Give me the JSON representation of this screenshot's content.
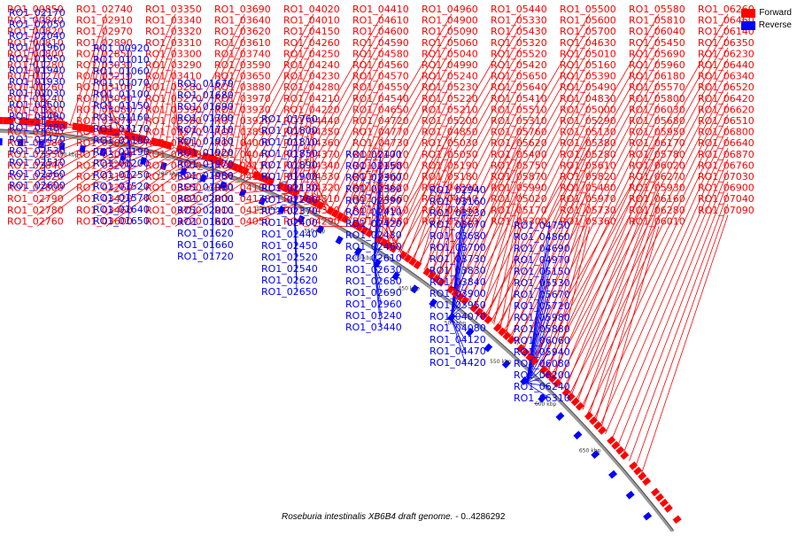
{
  "legend": {
    "forward_label": "Forward",
    "reverse_label": "Reverse",
    "forward_color": "#ff0000",
    "reverse_color": "#0000ff"
  },
  "caption": {
    "organism": "Roseburia intestinalis XB6B4 draft genome.",
    "range": "- 0..4286292"
  },
  "genome_length": 4286292,
  "tick_labels": [
    "100 kbp",
    "150 kbp",
    "200 kbp",
    "250 kbp",
    "300 kbp",
    "350 kbp",
    "400 kbp",
    "450 kbp",
    "500 kbp",
    "550 kbp",
    "600 kbp",
    "650 kbp"
  ],
  "forward_labels": [
    "RO1_00850",
    "RO1_00840",
    "RO1_00820",
    "RO1_00810",
    "RO1_00800",
    "RO1_01280",
    "RO1_01270",
    "RO1_01260",
    "RO1_01240",
    "RO1_01230",
    "RO1_01220",
    "RO1_01600",
    "RO1_02580",
    "RO1_02550",
    "RO1_02840",
    "RO1_02820",
    "RO1_02800",
    "RO1_02790",
    "RO1_02780",
    "RO1_02760",
    "RO1_02740",
    "RO1_02910",
    "RO1_02970",
    "RO1_02890",
    "RO1_02850",
    "RO1_03030",
    "RO1_03210",
    "RO1_03100",
    "RO1_03090",
    "RO1_03080",
    "RO1_03070",
    "RO1_03060",
    "RO1_03050",
    "RO1_03040",
    "RO1_03200",
    "RO1_03190",
    "RO1_03260",
    "RO1_03420",
    "RO1_03460",
    "RO1_03600",
    "RO1_03350",
    "RO1_03340",
    "RO1_03320",
    "RO1_03310",
    "RO1_03300",
    "RO1_03290",
    "RO1_03410",
    "RO1_03280",
    "RO1_03270",
    "RO1_03390",
    "RO1_03580",
    "RO1_03570",
    "RO1_03710",
    "RO1_03810",
    "RO1_03800",
    "RO1_03940",
    "RO1_03550",
    "RO1_03820",
    "RO1_03750",
    "RO1_03720",
    "RO1_03690",
    "RO1_03640",
    "RO1_03620",
    "RO1_03610",
    "RO1_03740",
    "RO1_03590",
    "RO1_03650",
    "RO1_03880",
    "RO1_03970",
    "RO1_03930",
    "RO1_03920",
    "RO1_03890",
    "RO1_04000",
    "RO1_04040",
    "RO1_04110",
    "RO1_04140",
    "RO1_04100",
    "RO1_04170",
    "RO1_04130",
    "RO1_04050",
    "RO1_04020",
    "RO1_04010",
    "RO1_04150",
    "RO1_04260",
    "RO1_04250",
    "RO1_04240",
    "RO1_04230",
    "RO1_04280",
    "RO1_04210",
    "RO1_04220",
    "RO1_04440",
    "RO1_04350",
    "RO1_04360",
    "RO1_04370",
    "RO1_04340",
    "RO1_04330",
    "RO1_04320",
    "RO1_04310",
    "RO1_04300",
    "RO1_04290",
    "RO1_04410",
    "RO1_04610",
    "RO1_04600",
    "RO1_04590",
    "RO1_04580",
    "RO1_04560",
    "RO1_04570",
    "RO1_04550",
    "RO1_04540",
    "RO1_04650",
    "RO1_04720",
    "RO1_04770",
    "RO1_04730",
    "RO1_04710",
    "RO1_04680",
    "RO1_04670",
    "RO1_04620",
    "RO1_04660",
    "RO1_04910",
    "RO1_04980",
    "RO1_04960",
    "RO1_04900",
    "RO1_05090",
    "RO1_05060",
    "RO1_05040",
    "RO1_04990",
    "RO1_05240",
    "RO1_05230",
    "RO1_05220",
    "RO1_05210",
    "RO1_05200",
    "RO1_04850",
    "RO1_05030",
    "RO1_05050",
    "RO1_05190",
    "RO1_05180",
    "RO1_04890",
    "RO1_04640",
    "RO1_04840",
    "RO1_05120",
    "RO1_05440",
    "RO1_05330",
    "RO1_05430",
    "RO1_05320",
    "RO1_05520",
    "RO1_05420",
    "RO1_05650",
    "RO1_05640",
    "RO1_05410",
    "RO1_05510",
    "RO1_05310",
    "RO1_05760",
    "RO1_05620",
    "RO1_05400",
    "RO1_05750",
    "RO1_05870",
    "RO1_05990",
    "RO1_05020",
    "RO1_05170",
    "RO1_05300",
    "RO1_05500",
    "RO1_05600",
    "RO1_05700",
    "RO1_04630",
    "RO1_05010",
    "RO1_05160",
    "RO1_05390",
    "RO1_05490",
    "RO1_04830",
    "RO1_05000",
    "RO1_05290",
    "RO1_05130",
    "RO1_05380",
    "RO1_05280",
    "RO1_05610",
    "RO1_05820",
    "RO1_05480",
    "RO1_05970",
    "RO1_05730",
    "RO1_05360",
    "RO1_05580",
    "RO1_05810",
    "RO1_06040",
    "RO1_05450",
    "RO1_05690",
    "RO1_05960",
    "RO1_06180",
    "RO1_05570",
    "RO1_05800",
    "RO1_06030",
    "RO1_05680",
    "RO1_05950",
    "RO1_06170",
    "RO1_05780",
    "RO1_06020",
    "RO1_06270",
    "RO1_05930",
    "RO1_06160",
    "RO1_06280",
    "RO1_06010",
    "RO1_06260",
    "RO1_06460",
    "RO1_06140",
    "RO1_06350",
    "RO1_06230",
    "RO1_06440",
    "RO1_06340",
    "RO1_06520",
    "RO1_06420",
    "RO1_06620",
    "RO1_06510",
    "RO1_06800",
    "RO1_06640",
    "RO1_06870",
    "RO1_06760",
    "RO1_07030",
    "RO1_06900",
    "RO1_07040",
    "RO1_07090"
  ],
  "reverse_labels": [
    "RO1_02170",
    "RO1_02050",
    "RO1_02040",
    "RO1_01960",
    "RO1_01950",
    "RO1_01940",
    "RO1_01930",
    "RO1_02030",
    "RO1_02500",
    "RO1_02490",
    "RO1_02480",
    "RO1_02470",
    "RO1_02530",
    "RO1_02510",
    "RO1_02360",
    "RO1_02600",
    "RO1_00920",
    "RO1_01010",
    "RO1_01060",
    "RO1_01070",
    "RO1_01100",
    "RO1_01150",
    "RO1_01160",
    "RO1_01170",
    "RO1_01180",
    "RO1_01190",
    "RO1_01200",
    "RO1_01250",
    "RO1_01520",
    "RO1_01570",
    "RO1_01640",
    "RO1_01650",
    "RO1_01670",
    "RO1_01680",
    "RO1_01690",
    "RO1_01700",
    "RO1_01710",
    "RO1_01910",
    "RO1_01920",
    "RO1_01970",
    "RO1_01980",
    "RO1_01990",
    "RO1_02000",
    "RO1_02010",
    "RO1_01610",
    "RO1_01620",
    "RO1_01660",
    "RO1_01720",
    "RO1_01760",
    "RO1_01800",
    "RO1_01810",
    "RO1_01850",
    "RO1_01890",
    "RO1_01900",
    "RO1_02130",
    "RO1_02260",
    "RO1_02370",
    "RO1_02400",
    "RO1_02440",
    "RO1_02450",
    "RO1_02520",
    "RO1_02540",
    "RO1_02620",
    "RO1_02650",
    "RO1_02100",
    "RO1_02150",
    "RO1_02300",
    "RO1_02380",
    "RO1_02390",
    "RO1_02410",
    "RO1_02420",
    "RO1_02430",
    "RO1_02460",
    "RO1_02610",
    "RO1_02630",
    "RO1_02680",
    "RO1_02690",
    "RO1_02960",
    "RO1_03240",
    "RO1_03440",
    "RO1_02940",
    "RO1_03160",
    "RO1_03230",
    "RO1_03670",
    "RO1_03680",
    "RO1_03700",
    "RO1_03730",
    "RO1_03830",
    "RO1_03840",
    "RO1_03900",
    "RO1_03950",
    "RO1_04070",
    "RO1_04080",
    "RO1_04120",
    "RO1_04470",
    "RO1_04420",
    "RO1_04750",
    "RO1_04860",
    "RO1_04690",
    "RO1_04970",
    "RO1_05150",
    "RO1_05530",
    "RO1_05670",
    "RO1_05720",
    "RO1_05980",
    "RO1_05880",
    "RO1_06060",
    "RO1_05940",
    "RO1_06080",
    "RO1_06200",
    "RO1_06240",
    "RO1_06310"
  ]
}
